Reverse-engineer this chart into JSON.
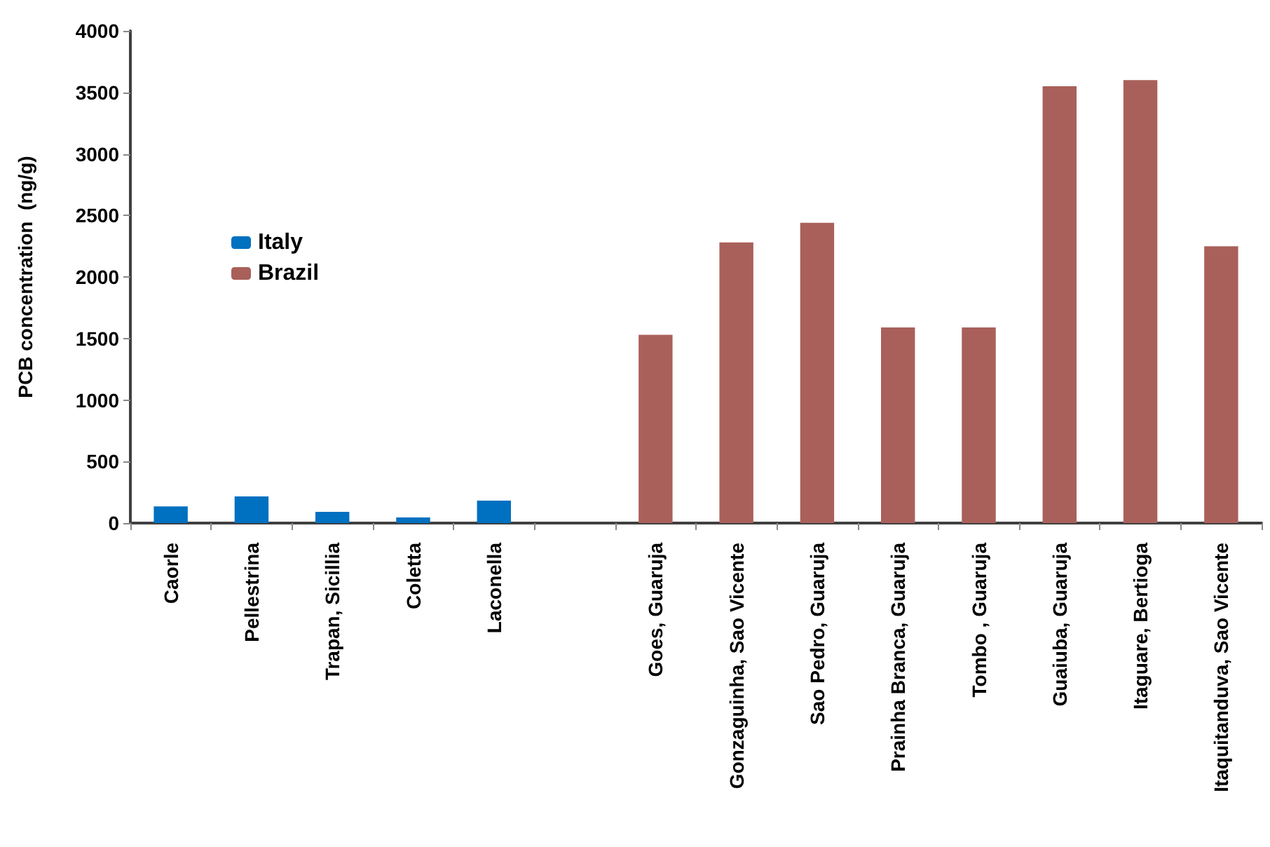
{
  "chart_data": {
    "type": "bar",
    "ylabel": "PCB concentration  (ng/g)",
    "categories": [
      "Caorle",
      "Pellestrina",
      "Trapan, Sicillia",
      "Coletta",
      "Laconella",
      null,
      "Goes, Guaruja",
      "Gonzaguinha, Sao Vicente",
      "Sao Pedro, Guaruja",
      "Prainha Branca, Guaruja",
      "Tombo , Guaruja",
      "Guaiuba, Guaruja",
      "Itaguare, Bertioga",
      "Itaquitanduva, Sao Vicente"
    ],
    "series": [
      {
        "name": "Italy",
        "color": "#0070c0",
        "values": [
          136,
          216,
          91,
          45,
          182,
          null,
          null,
          null,
          null,
          null,
          null,
          null,
          null,
          null
        ]
      },
      {
        "name": "Brazil",
        "color": "#a9605a",
        "values": [
          null,
          null,
          null,
          null,
          null,
          null,
          1530,
          2280,
          2440,
          1590,
          1590,
          3550,
          3600,
          2250
        ]
      }
    ],
    "ylim": [
      0,
      4000
    ],
    "yticks": [
      0,
      500,
      1000,
      1500,
      2000,
      2500,
      3000,
      3500,
      4000
    ],
    "grid": false,
    "legend": "left"
  }
}
